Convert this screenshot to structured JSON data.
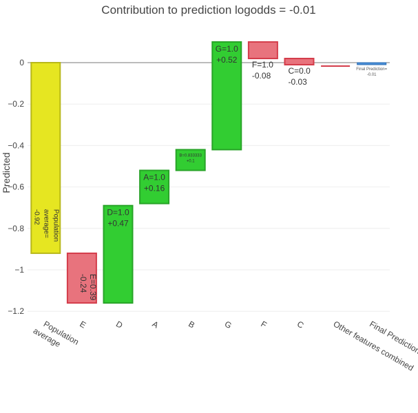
{
  "chart_data": {
    "type": "waterfall",
    "title": "Contribution to prediction logodds = -0.01",
    "ylabel": "Predicted",
    "xlabel": "",
    "ylim": [
      -1.25,
      0.2
    ],
    "yticks": [
      0,
      -0.2,
      -0.4,
      -0.6,
      -0.8,
      -1,
      -1.2
    ],
    "ytick_labels": [
      "0",
      "−0.2",
      "−0.4",
      "−0.6",
      "−0.8",
      "−1",
      "−1.2"
    ],
    "grid": true,
    "colors": {
      "base": "#e6e621",
      "base_stroke": "#b8b81a",
      "positive": "#32cd32",
      "positive_stroke": "#28a428",
      "negative": "#e8737d",
      "negative_stroke": "#d43c4a",
      "final": "#4a90d9",
      "final_stroke": "#2c6cb0",
      "zero_line": "#777777",
      "grid": "#eeeeee"
    },
    "categories": [
      "Population average",
      "E",
      "D",
      "A",
      "B",
      "G",
      "F",
      "C",
      "Other features combined",
      "Final Prediction"
    ],
    "bars": [
      {
        "category": "Population average",
        "kind": "base",
        "start": 0,
        "end": -0.92,
        "label": [
          "Population",
          "average=",
          "-0.92"
        ],
        "label_style": "vertical"
      },
      {
        "category": "E",
        "kind": "negative",
        "start": -0.92,
        "end": -1.16,
        "label": [
          "E=0.39",
          "-0.24"
        ],
        "label_style": "vertical"
      },
      {
        "category": "D",
        "kind": "positive",
        "start": -1.16,
        "end": -0.69,
        "label": [
          "D=1.0",
          "+0.47"
        ],
        "label_style": "inside"
      },
      {
        "category": "A",
        "kind": "positive",
        "start": -0.68,
        "end": -0.52,
        "label": [
          "A=1.0",
          "+0.16"
        ],
        "label_style": "inside"
      },
      {
        "category": "B",
        "kind": "positive",
        "start": -0.52,
        "end": -0.42,
        "label": [
          "B=0.833333",
          "+0.1"
        ],
        "label_style": "small"
      },
      {
        "category": "G",
        "kind": "positive",
        "start": -0.42,
        "end": 0.1,
        "label": [
          "G=1.0",
          "+0.52"
        ],
        "label_style": "inside"
      },
      {
        "category": "F",
        "kind": "negative",
        "start": 0.1,
        "end": 0.02,
        "label": [
          "F=1.0",
          "-0.08"
        ],
        "label_style": "below"
      },
      {
        "category": "C",
        "kind": "negative",
        "start": 0.02,
        "end": -0.01,
        "label": [
          "C=0.0",
          "-0.03"
        ],
        "label_style": "below"
      },
      {
        "category": "Other features combined",
        "kind": "negative",
        "start": -0.01,
        "end": -0.01,
        "label": [],
        "label_style": "none"
      },
      {
        "category": "Final Prediction",
        "kind": "final",
        "start": 0,
        "end": -0.01,
        "label": [
          "Final Prediction=",
          "-0.01"
        ],
        "label_style": "tiny"
      }
    ]
  }
}
